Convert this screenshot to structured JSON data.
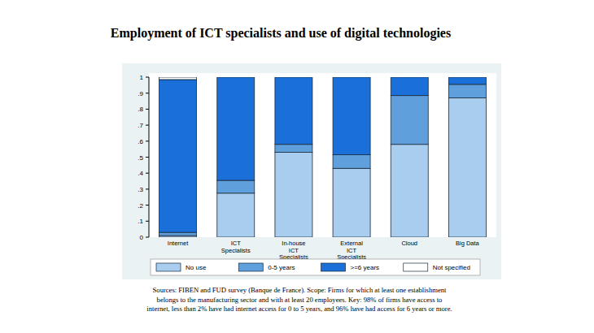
{
  "chart_data": {
    "type": "bar",
    "stacked": true,
    "title": "Employment of ICT specialists and use of digital technologies",
    "categories": [
      "Internet",
      "ICT Specialists",
      "In-house ICT Specialists",
      "External ICT Specialists",
      "Cloud",
      "Big Data"
    ],
    "series": [
      {
        "name": "No use",
        "color": "#a8cdee",
        "values": [
          0.01,
          0.275,
          0.53,
          0.43,
          0.58,
          0.87
        ]
      },
      {
        "name": "0-5 years",
        "color": "#5f9fdc",
        "values": [
          0.02,
          0.08,
          0.05,
          0.085,
          0.305,
          0.085
        ]
      },
      {
        "name": ">=6 years",
        "color": "#1a6fd8",
        "values": [
          0.955,
          0.645,
          0.42,
          0.485,
          0.115,
          0.045
        ]
      },
      {
        "name": "Not specified",
        "color": "#ffffff",
        "values": [
          0.015,
          0,
          0,
          0,
          0,
          0
        ]
      }
    ],
    "ylim": [
      0,
      1
    ],
    "yticks": [
      0,
      {
        "value": 0.1,
        "label": ".1"
      },
      {
        "value": 0.2,
        "label": ".2"
      },
      {
        "value": 0.3,
        "label": ".3"
      },
      {
        "value": 0.4,
        "label": ".4"
      },
      {
        "value": 0.5,
        "label": ".5"
      },
      {
        "value": 0.6,
        "label": ".6"
      },
      {
        "value": 0.7,
        "label": ".7"
      },
      {
        "value": 0.8,
        "label": ".8"
      },
      {
        "value": 0.9,
        "label": ".9"
      },
      1
    ],
    "grid": false,
    "legend": "bottom",
    "notes": [
      "Sources: FIBEN and FUD survey (Banque de France). Scope: Firms for which at least one establishment",
      "belongs to the manufacturing sector and with at least 20 employees. Key: 98% of firms have access to",
      "internet, less than 2% have had internet access for 0 to 5 years, and 96% have had access for 6 years or more."
    ]
  }
}
